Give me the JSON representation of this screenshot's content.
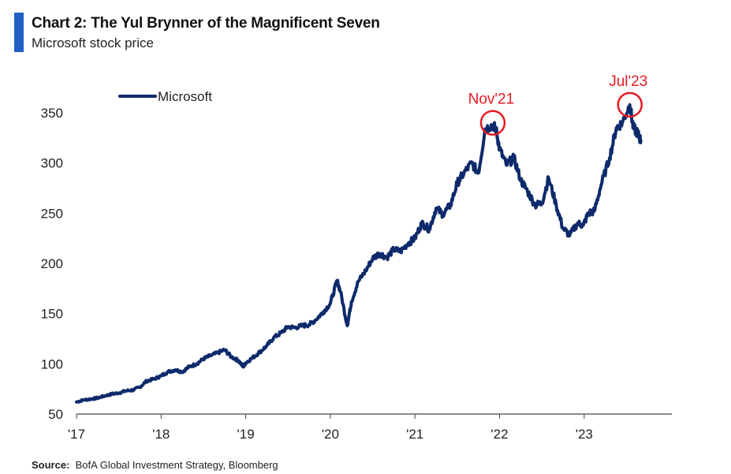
{
  "header": {
    "title": "Chart 2: The Yul Brynner of the Magnificent Seven",
    "subtitle": "Microsoft stock price"
  },
  "footer": {
    "source_label": "Source:",
    "source_text": "BofA Global Investment Strategy, Bloomberg"
  },
  "chart_data": {
    "type": "line",
    "title": "Chart 2: The Yul Brynner of the Magnificent Seven",
    "subtitle": "Microsoft stock price",
    "xlabel": "",
    "ylabel": "",
    "x_ticks": [
      "'17",
      "'18",
      "'19",
      "'20",
      "'21",
      "'22",
      "'23"
    ],
    "x_tick_values": [
      2017,
      2018,
      2019,
      2020,
      2021,
      2022,
      2023
    ],
    "y_ticks": [
      50,
      100,
      150,
      200,
      250,
      300,
      350
    ],
    "xlim": [
      2017,
      2024.05
    ],
    "ylim": [
      50,
      370
    ],
    "grid": false,
    "legend": "top-left",
    "series_color": "#0d2a6b",
    "annotation_color": "#e31b23",
    "series": [
      {
        "name": "Microsoft",
        "points": [
          [
            2017.0,
            62
          ],
          [
            2017.08,
            64
          ],
          [
            2017.17,
            65
          ],
          [
            2017.25,
            66
          ],
          [
            2017.33,
            68
          ],
          [
            2017.42,
            70
          ],
          [
            2017.5,
            71
          ],
          [
            2017.58,
            73
          ],
          [
            2017.67,
            74
          ],
          [
            2017.75,
            77
          ],
          [
            2017.83,
            83
          ],
          [
            2017.92,
            85
          ],
          [
            2018.0,
            88
          ],
          [
            2018.08,
            92
          ],
          [
            2018.17,
            94
          ],
          [
            2018.25,
            92
          ],
          [
            2018.33,
            97
          ],
          [
            2018.42,
            100
          ],
          [
            2018.5,
            105
          ],
          [
            2018.58,
            108
          ],
          [
            2018.67,
            111
          ],
          [
            2018.75,
            114
          ],
          [
            2018.83,
            107
          ],
          [
            2018.92,
            103
          ],
          [
            2018.97,
            97
          ],
          [
            2019.0,
            101
          ],
          [
            2019.08,
            106
          ],
          [
            2019.17,
            112
          ],
          [
            2019.25,
            118
          ],
          [
            2019.33,
            126
          ],
          [
            2019.42,
            131
          ],
          [
            2019.5,
            137
          ],
          [
            2019.58,
            136
          ],
          [
            2019.67,
            138
          ],
          [
            2019.75,
            139
          ],
          [
            2019.83,
            144
          ],
          [
            2019.92,
            152
          ],
          [
            2020.0,
            160
          ],
          [
            2020.08,
            183
          ],
          [
            2020.12,
            172
          ],
          [
            2020.2,
            138
          ],
          [
            2020.25,
            162
          ],
          [
            2020.33,
            182
          ],
          [
            2020.42,
            193
          ],
          [
            2020.5,
            205
          ],
          [
            2020.58,
            210
          ],
          [
            2020.67,
            206
          ],
          [
            2020.75,
            214
          ],
          [
            2020.83,
            212
          ],
          [
            2020.92,
            220
          ],
          [
            2021.0,
            225
          ],
          [
            2021.08,
            240
          ],
          [
            2021.17,
            234
          ],
          [
            2021.25,
            255
          ],
          [
            2021.33,
            249
          ],
          [
            2021.42,
            258
          ],
          [
            2021.5,
            280
          ],
          [
            2021.58,
            290
          ],
          [
            2021.67,
            300
          ],
          [
            2021.75,
            290
          ],
          [
            2021.83,
            334
          ],
          [
            2021.92,
            338
          ],
          [
            2021.96,
            333
          ],
          [
            2022.0,
            314
          ],
          [
            2022.08,
            298
          ],
          [
            2022.17,
            305
          ],
          [
            2022.25,
            283
          ],
          [
            2022.33,
            272
          ],
          [
            2022.42,
            258
          ],
          [
            2022.5,
            260
          ],
          [
            2022.58,
            285
          ],
          [
            2022.67,
            258
          ],
          [
            2022.75,
            235
          ],
          [
            2022.83,
            228
          ],
          [
            2022.92,
            240
          ],
          [
            2022.99,
            238
          ],
          [
            2023.05,
            250
          ],
          [
            2023.12,
            252
          ],
          [
            2023.2,
            278
          ],
          [
            2023.3,
            305
          ],
          [
            2023.38,
            335
          ],
          [
            2023.45,
            340
          ],
          [
            2023.54,
            358
          ],
          [
            2023.58,
            335
          ],
          [
            2023.63,
            330
          ],
          [
            2023.67,
            322
          ]
        ]
      }
    ],
    "annotations": [
      {
        "label": "Nov'21",
        "x": 2021.92,
        "y": 340
      },
      {
        "label": "Jul'23",
        "x": 2023.54,
        "y": 358
      }
    ]
  }
}
